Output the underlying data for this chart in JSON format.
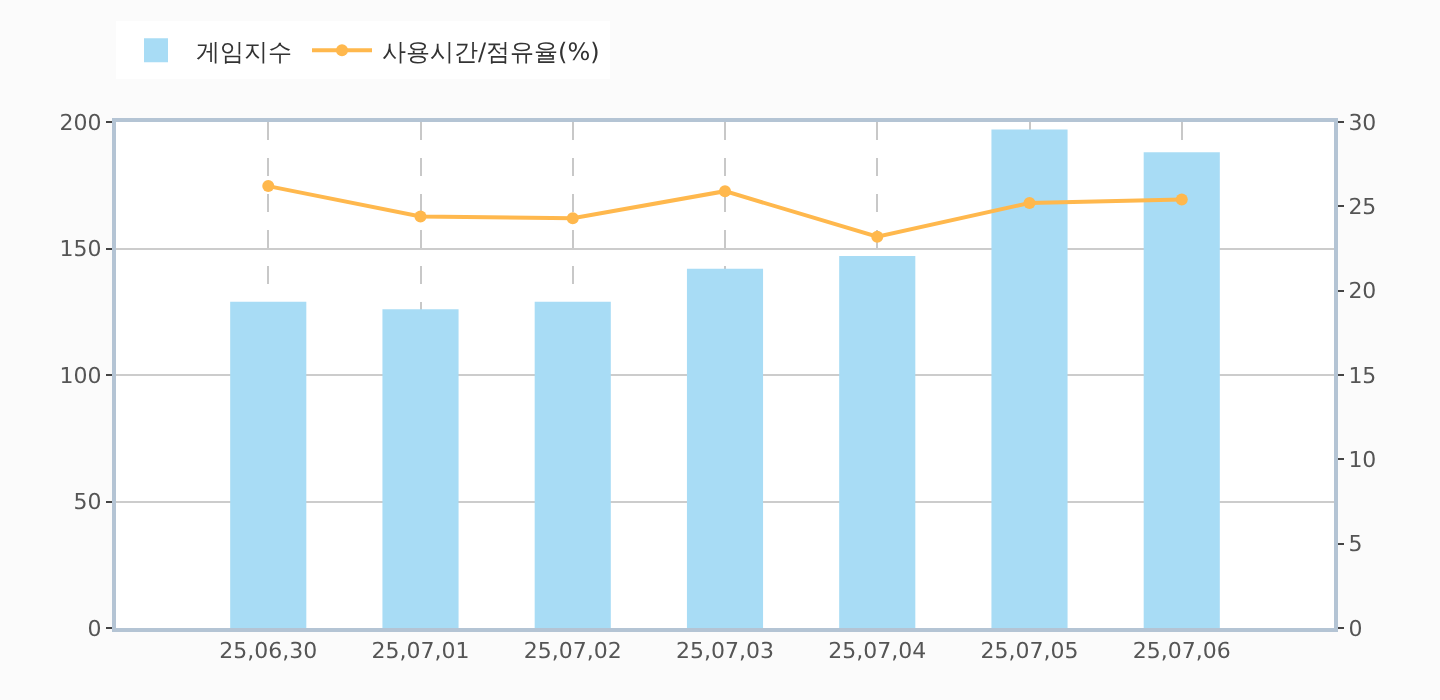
{
  "chart_data": {
    "type": "bar",
    "categories": [
      "25,06,30",
      "25,07,01",
      "25,07,02",
      "25,07,03",
      "25,07,04",
      "25,07,05",
      "25,07,06"
    ],
    "series": [
      {
        "name": "게임지수",
        "color": "#a8dcf5",
        "values": [
          129,
          126,
          129,
          142,
          147,
          197,
          188
        ]
      },
      {
        "name": "사용시간/점유율(%)",
        "type": "line",
        "axis": "y2",
        "color": "#ffb84d",
        "marker": "circle",
        "values": [
          26.2,
          24.4,
          24.3,
          25.9,
          23.2,
          25.2,
          25.4
        ]
      }
    ],
    "ylim": [
      0,
      200
    ],
    "yticks": [
      0,
      50,
      100,
      150,
      200
    ],
    "y2lim": [
      0,
      30
    ],
    "y2ticks": [
      0,
      5,
      10,
      15,
      20,
      25,
      30
    ],
    "grid": true,
    "legend": "top left"
  }
}
